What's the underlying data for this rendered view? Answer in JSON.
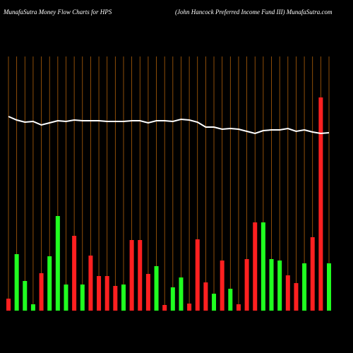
{
  "chart_data": {
    "type": "bar",
    "title": "MunafaSutra  Money Flow  Charts for HPS",
    "subtitle": "(John  Hancock  Preferred Income   Fund III) MunafaSutra.com",
    "series": [
      {
        "name": "Money Flow",
        "colors": [
          "#ff2020",
          "#20ff20",
          "#20ff20",
          "#20ff20",
          "#ff2020",
          "#20ff20",
          "#20ff20",
          "#20ff20",
          "#ff2020",
          "#20ff20",
          "#ff2020",
          "#ff2020",
          "#ff2020",
          "#ff2020",
          "#20ff20",
          "#ff2020",
          "#ff2020",
          "#ff2020",
          "#20ff20",
          "#ff2020",
          "#20ff20",
          "#20ff20",
          "#ff2020",
          "#ff2020",
          "#ff2020",
          "#20ff20",
          "#ff2020",
          "#20ff20",
          "#ff2020",
          "#ff2020",
          "#ff2020",
          "#20ff20",
          "#20ff20",
          "#20ff20",
          "#ff2020",
          "#ff2020",
          "#20ff20",
          "#ff2020",
          "#ff2020",
          "#20ff20"
        ],
        "values": [
          17,
          80,
          42,
          9,
          53,
          77,
          134,
          37,
          106,
          37,
          78,
          49,
          49,
          35,
          37,
          100,
          100,
          52,
          63,
          8,
          33,
          47,
          10,
          101,
          40,
          24,
          71,
          31,
          9,
          73,
          125,
          125,
          73,
          71,
          50,
          39,
          67,
          104,
          302,
          67
        ]
      },
      {
        "name": "Price",
        "color": "#ffffff",
        "values": [
          275,
          270,
          267,
          268,
          263,
          266,
          269,
          268,
          270,
          269,
          269,
          269,
          268,
          268,
          268,
          269,
          269,
          266,
          269,
          269,
          268,
          271,
          270,
          267,
          260,
          260,
          257,
          258,
          257,
          254,
          251,
          255,
          256,
          256,
          258,
          254,
          256,
          253,
          251,
          252
        ]
      }
    ],
    "grid_color": "#b0600a"
  }
}
